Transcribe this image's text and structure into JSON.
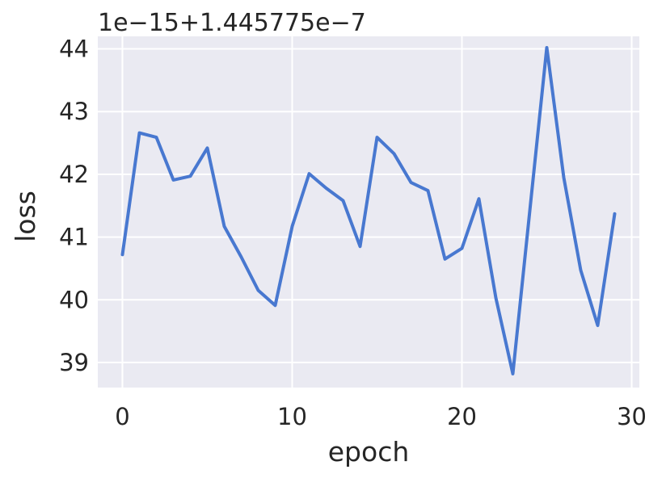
{
  "chart_data": {
    "type": "line",
    "xlabel": "epoch",
    "ylabel": "loss",
    "offset_text": "1e−15+1.445775e−7",
    "xlim": [
      -1.45,
      30.45
    ],
    "ylim": [
      38.6,
      44.2
    ],
    "xticks": [
      0,
      10,
      20,
      30
    ],
    "yticks": [
      39,
      40,
      41,
      42,
      43,
      44
    ],
    "grid": true,
    "colors": {
      "line": "#4878d0",
      "background": "#eaeaf2",
      "grid": "#ffffff"
    },
    "series": [
      {
        "x": [
          0,
          1,
          2,
          3,
          4,
          5,
          6,
          7,
          8,
          9,
          10,
          11,
          12,
          13,
          14,
          15,
          16,
          17,
          18,
          19,
          20,
          21,
          22,
          23,
          24,
          25,
          26,
          27,
          28,
          29
        ],
        "values": [
          40.72,
          42.66,
          42.59,
          41.91,
          41.97,
          42.42,
          41.17,
          40.68,
          40.15,
          39.91,
          41.17,
          42.01,
          41.78,
          41.58,
          40.85,
          42.59,
          42.33,
          41.87,
          41.74,
          40.65,
          40.82,
          41.61,
          40.03,
          38.82,
          41.42,
          44.02,
          41.95,
          40.47,
          39.59,
          41.37
        ]
      }
    ]
  }
}
